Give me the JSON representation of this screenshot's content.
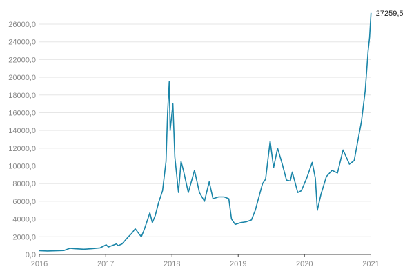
{
  "chart_data": {
    "type": "line",
    "title": "",
    "xlabel": "",
    "ylabel": "",
    "ylim": [
      0,
      26000
    ],
    "yticks": [
      "0,0",
      "2000,0",
      "4000,0",
      "6000,0",
      "8000,0",
      "10000,0",
      "12000,0",
      "14000,0",
      "16000,0",
      "18000,0",
      "20000,0",
      "22000,0",
      "24000,0",
      "26000,0"
    ],
    "xticks": [
      "2016",
      "2017",
      "2018",
      "2019",
      "2020",
      "2021"
    ],
    "xlim": [
      "2016-01-01",
      "2021-01-03"
    ],
    "grid": "horizontal",
    "line_color": "#1a85a8",
    "end_label": "27259,5",
    "series": [
      {
        "x": [
          "2016-01-01",
          "2016-02-15",
          "2016-04-01",
          "2016-05-15",
          "2016-06-17",
          "2016-07-15",
          "2016-09-01",
          "2016-10-15",
          "2016-12-01",
          "2017-01-04",
          "2017-01-15",
          "2017-03-01",
          "2017-03-10",
          "2017-04-01",
          "2017-05-01",
          "2017-05-25",
          "2017-06-12",
          "2017-07-16",
          "2017-08-01",
          "2017-09-01",
          "2017-09-15",
          "2017-10-01",
          "2017-10-20",
          "2017-11-10",
          "2017-11-29",
          "2017-12-08",
          "2017-12-17",
          "2017-12-22",
          "2018-01-06",
          "2018-01-17",
          "2018-02-06",
          "2018-02-20",
          "2018-03-05",
          "2018-04-01",
          "2018-05-05",
          "2018-06-01",
          "2018-06-29",
          "2018-07-25",
          "2018-08-15",
          "2018-09-15",
          "2018-10-15",
          "2018-11-10",
          "2018-11-25",
          "2018-12-15",
          "2019-01-15",
          "2019-02-15",
          "2019-03-15",
          "2019-04-05",
          "2019-05-15",
          "2019-06-01",
          "2019-06-26",
          "2019-07-15",
          "2019-08-06",
          "2019-09-01",
          "2019-09-24",
          "2019-10-15",
          "2019-10-26",
          "2019-11-25",
          "2019-12-15",
          "2020-01-15",
          "2020-02-13",
          "2020-03-01",
          "2020-03-12",
          "2020-04-01",
          "2020-05-01",
          "2020-06-01",
          "2020-07-01",
          "2020-08-01",
          "2020-09-05",
          "2020-10-01",
          "2020-10-21",
          "2020-11-10",
          "2020-12-01",
          "2020-12-17",
          "2020-12-25",
          "2021-01-02"
        ],
        "values": [
          430,
          400,
          420,
          450,
          700,
          650,
          600,
          650,
          750,
          1100,
          850,
          1200,
          1000,
          1200,
          1900,
          2400,
          2900,
          2000,
          2800,
          4700,
          3600,
          4400,
          5900,
          7200,
          10500,
          16000,
          19500,
          14000,
          17000,
          11000,
          7000,
          10500,
          9500,
          7000,
          9500,
          7000,
          6000,
          8200,
          6300,
          6500,
          6500,
          6300,
          4000,
          3400,
          3600,
          3700,
          3900,
          5000,
          8000,
          8500,
          12800,
          9800,
          12000,
          10200,
          8400,
          8300,
          9300,
          7000,
          7200,
          8700,
          10400,
          8600,
          5000,
          6800,
          8800,
          9500,
          9200,
          11800,
          10200,
          10600,
          12800,
          15000,
          18500,
          23000,
          24500,
          27259.5
        ]
      }
    ]
  }
}
